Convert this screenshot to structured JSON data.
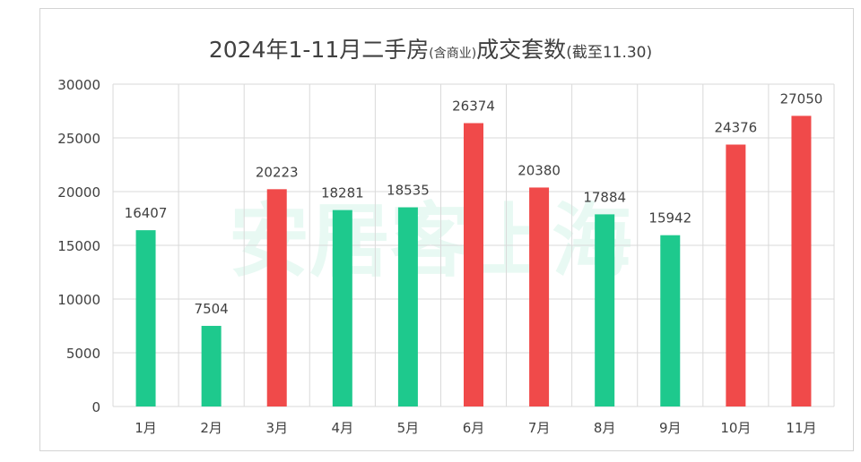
{
  "title": {
    "main": "2024年1-11月二手房",
    "qualifier": "(含商业)",
    "subject": "成交套数",
    "note": "(截至11.30)"
  },
  "watermark": "安居客上海",
  "colors": {
    "green": "#1ec98d",
    "red": "#f04a4a",
    "grid": "#d9d9d9",
    "axis_text": "#404040"
  },
  "chart_data": {
    "type": "bar",
    "categories": [
      "1月",
      "2月",
      "3月",
      "4月",
      "5月",
      "6月",
      "7月",
      "8月",
      "9月",
      "10月",
      "11月"
    ],
    "values": [
      16407,
      7504,
      20223,
      18281,
      18535,
      26374,
      20380,
      17884,
      15942,
      24376,
      27050
    ],
    "bar_colors": [
      "green",
      "green",
      "red",
      "green",
      "green",
      "red",
      "red",
      "green",
      "green",
      "red",
      "red"
    ],
    "data_labels": [
      "16407",
      "7504",
      "20223",
      "18281",
      "18535",
      "26374",
      "20380",
      "17884",
      "15942",
      "24376",
      "27050"
    ],
    "y_ticks": [
      "0",
      "5000",
      "10000",
      "15000",
      "20000",
      "25000",
      "30000"
    ],
    "ylim": [
      0,
      30000
    ],
    "grid": true,
    "legend": "none",
    "xlabel": "",
    "ylabel": ""
  }
}
